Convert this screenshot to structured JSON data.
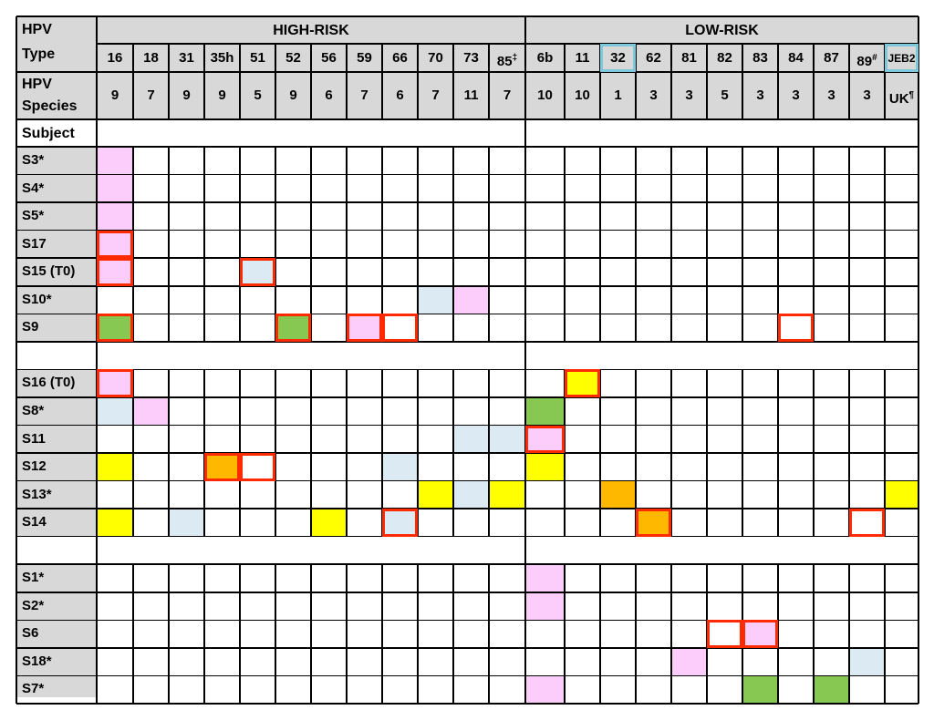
{
  "header": {
    "hpv_label_line1": "HPV",
    "hpv_label_line2": "Type",
    "species_label_line1": "HPV",
    "species_label_line2": "Species",
    "subject_label": "Subject",
    "high_risk_title": "HIGH-RISK",
    "low_risk_title": "LOW-RISK"
  },
  "types": [
    {
      "type": "16",
      "sup": "",
      "species": "9",
      "risk": "high"
    },
    {
      "type": "18",
      "sup": "",
      "species": "7",
      "risk": "high"
    },
    {
      "type": "31",
      "sup": "",
      "species": "9",
      "risk": "high"
    },
    {
      "type": "35h",
      "sup": "",
      "species": "9",
      "risk": "high"
    },
    {
      "type": "51",
      "sup": "",
      "species": "5",
      "risk": "high"
    },
    {
      "type": "52",
      "sup": "",
      "species": "9",
      "risk": "high"
    },
    {
      "type": "56",
      "sup": "",
      "species": "6",
      "risk": "high"
    },
    {
      "type": "59",
      "sup": "",
      "species": "7",
      "risk": "high"
    },
    {
      "type": "66",
      "sup": "",
      "species": "6",
      "risk": "high"
    },
    {
      "type": "70",
      "sup": "",
      "species": "7",
      "risk": "high"
    },
    {
      "type": "73",
      "sup": "",
      "species": "11",
      "risk": "high"
    },
    {
      "type": "85",
      "sup": "‡",
      "species": "7",
      "risk": "high"
    },
    {
      "type": "6b",
      "sup": "",
      "species": "10",
      "risk": "low"
    },
    {
      "type": "11",
      "sup": "",
      "species": "10",
      "risk": "low"
    },
    {
      "type": "32",
      "sup": "",
      "species": "1",
      "risk": "low"
    },
    {
      "type": "62",
      "sup": "",
      "species": "3",
      "risk": "low"
    },
    {
      "type": "81",
      "sup": "",
      "species": "3",
      "risk": "low"
    },
    {
      "type": "82",
      "sup": "",
      "species": "5",
      "risk": "low"
    },
    {
      "type": "83",
      "sup": "",
      "species": "3",
      "risk": "low"
    },
    {
      "type": "84",
      "sup": "",
      "species": "3",
      "risk": "low"
    },
    {
      "type": "87",
      "sup": "",
      "species": "3",
      "risk": "low"
    },
    {
      "type": "89",
      "sup": "#",
      "species": "3",
      "risk": "low"
    },
    {
      "type": "JEB2",
      "sup": "",
      "species": "UK",
      "species_sup": "¶",
      "risk": "low"
    }
  ],
  "colors": {
    "pink": "#fccdfa",
    "lightblue": "#dceaf3",
    "green": "#86c852",
    "yellow": "#ffff00",
    "orange": "#ffb800",
    "header_gray": "#d8d8d8",
    "highlight_red": "#ff2a00",
    "highlight_blue": "#7ec8dc"
  },
  "blue_highlighted_types": [
    "32",
    "JEB2"
  ],
  "subjects": [
    {
      "label": "S3*",
      "cells": [
        {
          "type": "16",
          "color": "pink"
        }
      ],
      "boxed": []
    },
    {
      "label": "S4*",
      "cells": [
        {
          "type": "16",
          "color": "pink"
        }
      ],
      "boxed": []
    },
    {
      "label": "S5*",
      "cells": [
        {
          "type": "16",
          "color": "pink"
        }
      ],
      "boxed": []
    },
    {
      "label": "S17",
      "cells": [
        {
          "type": "16",
          "color": "pink"
        }
      ],
      "boxed": [
        "16"
      ]
    },
    {
      "label": "S15 (T0)",
      "cells": [
        {
          "type": "16",
          "color": "pink"
        },
        {
          "type": "51",
          "color": "lightblue"
        }
      ],
      "boxed": [
        "16",
        "51"
      ]
    },
    {
      "label": "S10*",
      "cells": [
        {
          "type": "70",
          "color": "lightblue"
        },
        {
          "type": "73",
          "color": "pink"
        }
      ],
      "boxed": []
    },
    {
      "label": "S9",
      "cells": [
        {
          "type": "16",
          "color": "green"
        },
        {
          "type": "52",
          "color": "green"
        },
        {
          "type": "59",
          "color": "pink"
        }
      ],
      "boxed": [
        "16",
        "52",
        "59",
        "66",
        "84"
      ]
    },
    {
      "label": "",
      "blank": true,
      "cells": [],
      "boxed": []
    },
    {
      "label": "S16 (T0)",
      "cells": [
        {
          "type": "16",
          "color": "pink"
        },
        {
          "type": "11",
          "color": "yellow"
        }
      ],
      "boxed": [
        "16",
        "11"
      ]
    },
    {
      "label": "S8*",
      "cells": [
        {
          "type": "16",
          "color": "lightblue"
        },
        {
          "type": "18",
          "color": "pink"
        },
        {
          "type": "6b",
          "color": "green"
        }
      ],
      "boxed": []
    },
    {
      "label": "S11",
      "cells": [
        {
          "type": "73",
          "color": "lightblue"
        },
        {
          "type": "85",
          "color": "lightblue"
        },
        {
          "type": "6b",
          "color": "pink"
        }
      ],
      "boxed": [
        "6b"
      ]
    },
    {
      "label": "S12",
      "cells": [
        {
          "type": "16",
          "color": "yellow"
        },
        {
          "type": "35h",
          "color": "orange"
        },
        {
          "type": "66",
          "color": "lightblue"
        },
        {
          "type": "6b",
          "color": "yellow"
        }
      ],
      "boxed": [
        "35h",
        "51"
      ]
    },
    {
      "label": "S13*",
      "cells": [
        {
          "type": "70",
          "color": "yellow"
        },
        {
          "type": "73",
          "color": "lightblue"
        },
        {
          "type": "85",
          "color": "yellow"
        },
        {
          "type": "32",
          "color": "orange"
        },
        {
          "type": "JEB2",
          "color": "yellow"
        }
      ],
      "boxed": []
    },
    {
      "label": "S14",
      "cells": [
        {
          "type": "16",
          "color": "yellow"
        },
        {
          "type": "31",
          "color": "lightblue"
        },
        {
          "type": "56",
          "color": "yellow"
        },
        {
          "type": "66",
          "color": "lightblue"
        },
        {
          "type": "62",
          "color": "orange"
        }
      ],
      "boxed": [
        "66",
        "62",
        "89"
      ]
    },
    {
      "label": "",
      "blank": true,
      "cells": [],
      "boxed": []
    },
    {
      "label": "S1*",
      "cells": [
        {
          "type": "6b",
          "color": "pink"
        }
      ],
      "boxed": []
    },
    {
      "label": "S2*",
      "cells": [
        {
          "type": "6b",
          "color": "pink"
        }
      ],
      "boxed": []
    },
    {
      "label": "S6",
      "cells": [
        {
          "type": "83",
          "color": "pink"
        }
      ],
      "boxed": [
        "82",
        "83"
      ]
    },
    {
      "label": "S18*",
      "cells": [
        {
          "type": "81",
          "color": "pink"
        },
        {
          "type": "89",
          "color": "lightblue"
        }
      ],
      "boxed": []
    },
    {
      "label": "S7*",
      "cells": [
        {
          "type": "6b",
          "color": "pink"
        },
        {
          "type": "83",
          "color": "green"
        },
        {
          "type": "87",
          "color": "green"
        }
      ],
      "boxed": []
    }
  ]
}
